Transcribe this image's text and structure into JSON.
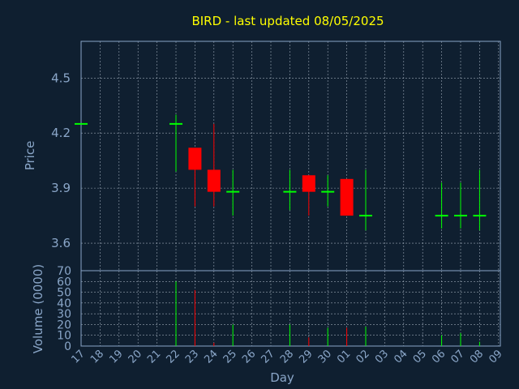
{
  "chart_data": [
    {
      "type": "candlestick",
      "title": "BIRD - last updated 08/05/2025",
      "ylabel": "Price",
      "ylim": [
        3.45,
        4.7
      ],
      "yticks": [
        "3.6",
        "3.9",
        "4.2",
        "4.5"
      ],
      "grid": true,
      "up_color": "#00ff00",
      "down_color": "#ff0000",
      "candles": [
        {
          "day": "17",
          "open": 4.25,
          "high": 4.25,
          "low": 4.25,
          "close": 4.25
        },
        {
          "day": "22",
          "open": 4.25,
          "high": 4.3,
          "low": 3.99,
          "close": 4.25
        },
        {
          "day": "23",
          "open": 4.12,
          "high": 4.12,
          "low": 3.8,
          "close": 4.0
        },
        {
          "day": "24",
          "open": 4.0,
          "high": 4.25,
          "low": 3.8,
          "close": 3.88
        },
        {
          "day": "25",
          "open": 3.88,
          "high": 4.0,
          "low": 3.75,
          "close": 3.88
        },
        {
          "day": "28",
          "open": 3.88,
          "high": 4.0,
          "low": 3.78,
          "close": 3.88
        },
        {
          "day": "29",
          "open": 3.97,
          "high": 3.97,
          "low": 3.75,
          "close": 3.88
        },
        {
          "day": "30",
          "open": 3.88,
          "high": 3.97,
          "low": 3.8,
          "close": 3.88
        },
        {
          "day": "01",
          "open": 3.95,
          "high": 3.95,
          "low": 3.75,
          "close": 3.75
        },
        {
          "day": "02",
          "open": 3.75,
          "high": 4.0,
          "low": 3.67,
          "close": 3.75
        },
        {
          "day": "06",
          "open": 3.75,
          "high": 3.93,
          "low": 3.68,
          "close": 3.75
        },
        {
          "day": "07",
          "open": 3.75,
          "high": 3.93,
          "low": 3.68,
          "close": 3.75
        },
        {
          "day": "08",
          "open": 3.75,
          "high": 4.0,
          "low": 3.67,
          "close": 3.75
        }
      ]
    },
    {
      "type": "bar",
      "ylabel": "Volume (0000)",
      "xlabel": "Day",
      "ylim": [
        0,
        70
      ],
      "yticks": [
        "0",
        "10",
        "20",
        "30",
        "40",
        "50",
        "60",
        "70"
      ],
      "grid": true,
      "bars": [
        {
          "day": "22",
          "value": 60,
          "color": "#00ff00"
        },
        {
          "day": "23",
          "value": 52,
          "color": "#ff0000"
        },
        {
          "day": "24",
          "value": 3,
          "color": "#ff0000"
        },
        {
          "day": "25",
          "value": 20,
          "color": "#00ff00"
        },
        {
          "day": "28",
          "value": 20,
          "color": "#00ff00"
        },
        {
          "day": "29",
          "value": 8,
          "color": "#ff0000"
        },
        {
          "day": "30",
          "value": 17,
          "color": "#00ff00"
        },
        {
          "day": "01",
          "value": 17,
          "color": "#ff0000"
        },
        {
          "day": "02",
          "value": 18,
          "color": "#00ff00"
        },
        {
          "day": "06",
          "value": 10,
          "color": "#00ff00"
        },
        {
          "day": "07",
          "value": 12,
          "color": "#00ff00"
        },
        {
          "day": "08",
          "value": 4,
          "color": "#00ff00"
        }
      ]
    }
  ],
  "x_days": [
    "17",
    "18",
    "19",
    "20",
    "21",
    "22",
    "23",
    "24",
    "25",
    "26",
    "27",
    "28",
    "29",
    "30",
    "01",
    "02",
    "03",
    "04",
    "05",
    "06",
    "07",
    "08",
    "09"
  ]
}
